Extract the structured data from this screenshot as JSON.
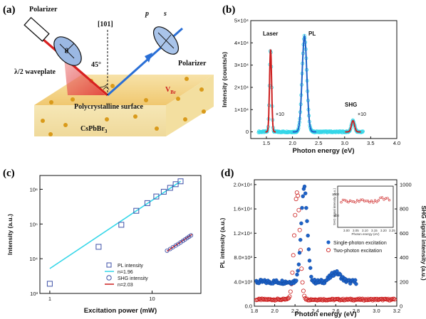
{
  "panels": {
    "a": {
      "label": "(a)"
    },
    "b": {
      "label": "(b)"
    },
    "c": {
      "label": "(c)"
    },
    "d": {
      "label": "(d)"
    }
  },
  "diagram_a": {
    "polarizer_in": "Polarizer",
    "waveplate": "λ/2 waveplate",
    "theta": "θ",
    "direction": "[101]",
    "angle": "45°",
    "p": "p",
    "s": "s",
    "polarizer_out": "Polarizer",
    "surface": "Polycrystalline surface",
    "vacancy_main": "V",
    "vacancy_sub": "Br",
    "crystal_main": "CsPbBr",
    "crystal_sub": "3"
  },
  "colors": {
    "red": "#cc1f1f",
    "cyan": "#33d6e8",
    "blue": "#1d62c8",
    "slab_top": "#f5d894",
    "slab_side": "#f2e0a6",
    "beam_blue": "#2a6fd6",
    "dot": "#d99a1a"
  },
  "chart_data": [
    {
      "panel": "b",
      "type": "line",
      "xlabel": "Photon energy (eV)",
      "ylabel": "Intensity (counts/s)",
      "xlim": [
        1.2,
        4.0
      ],
      "ylim": [
        -3000,
        50000
      ],
      "xticks": [
        "1.5",
        "2.0",
        "2.5",
        "3.0",
        "3.5",
        "4.0"
      ],
      "xtick_values": [
        1.5,
        2.0,
        2.5,
        3.0,
        3.5,
        4.0
      ],
      "yticks": [
        "0",
        "1×10⁴",
        "2×10⁴",
        "3×10⁴",
        "4×10⁴",
        "5×10⁴"
      ],
      "ytick_values": [
        0,
        10000,
        20000,
        30000,
        40000,
        50000
      ],
      "annotations": [
        "Laser",
        "PL",
        "SHG",
        "×10",
        "×10"
      ],
      "peaks": [
        {
          "name": "Laser",
          "center": 1.58,
          "height": 37000,
          "width": 0.02
        },
        {
          "name": "PL",
          "center": 2.23,
          "height": 43000,
          "width": 0.045
        },
        {
          "name": "SHG",
          "center": 3.16,
          "height": 5000,
          "width": 0.03
        }
      ],
      "fit_color": "red",
      "data_color": "cyan"
    },
    {
      "panel": "c",
      "type": "scatter",
      "xscale": "log",
      "yscale": "log",
      "xlabel": "Excitation power (mW)",
      "ylabel": "Intensity (a.u.)",
      "xlim": [
        0.8,
        30
      ],
      "ylim": [
        1000,
        2500000
      ],
      "xticks": [
        "1",
        "10"
      ],
      "xtick_values": [
        1,
        10
      ],
      "yticks": [
        "10³",
        "10⁴",
        "10⁵",
        "10⁶"
      ],
      "ytick_values": [
        1000,
        10000,
        100000,
        1000000
      ],
      "series": [
        {
          "name": "PL intensity",
          "marker": "square",
          "x": [
            1.0,
            3.0,
            5.0,
            7.0,
            9.0,
            11.0,
            13.0,
            15.0,
            17.0,
            19.0
          ],
          "y": [
            1900,
            22000,
            95000,
            240000,
            400000,
            620000,
            850000,
            1100000,
            1400000,
            1700000
          ]
        },
        {
          "name": "n=1.96",
          "type": "line",
          "x": [
            1.0,
            19.0
          ],
          "y": [
            5200,
            1700000
          ]
        },
        {
          "name": "SHG intensity",
          "marker": "circle",
          "x": [
            14.0,
            15.0,
            16.0,
            17.0,
            18.0,
            19.0,
            20.0,
            21.0,
            22.0,
            23.0,
            24.0
          ],
          "y": [
            17000,
            19000,
            21500,
            24000,
            26500,
            29500,
            32500,
            36000,
            39500,
            43000,
            47000
          ]
        },
        {
          "name": "n=2.03",
          "type": "line",
          "x": [
            14.0,
            24.5
          ],
          "y": [
            16500,
            50000
          ]
        }
      ],
      "legend": "bottom-right"
    },
    {
      "panel": "d",
      "type": "scatter",
      "xlabel": "Photon energy (eV)",
      "ylabel": "PL intensity (a.u.)",
      "ylabel_right": "SHG signal intensity (a.u.)",
      "xlim": [
        1.8,
        3.2
      ],
      "ylim": [
        0,
        20800
      ],
      "ylim_right": [
        0,
        1040
      ],
      "xticks": [
        "1.8",
        "2.0",
        "2.2",
        "2.4",
        "2.6",
        "2.8",
        "3.0",
        "3.2"
      ],
      "xtick_values": [
        1.8,
        2.0,
        2.2,
        2.4,
        2.6,
        2.8,
        3.0,
        3.2
      ],
      "yticks": [
        "0.0",
        "4.0×10³",
        "8.0×10³",
        "1.2×10⁴",
        "1.6×10⁴",
        "2.0×10⁴"
      ],
      "ytick_values": [
        0,
        4000,
        8000,
        12000,
        16000,
        20000
      ],
      "yticks_right": [
        "0",
        "200",
        "400",
        "600",
        "800",
        "1000"
      ],
      "ytick_values_right": [
        0,
        200,
        400,
        600,
        800,
        1000
      ],
      "series": [
        {
          "name": "Single-photon excitation",
          "marker": "filled-circle",
          "axis": "left",
          "baseline": 4000,
          "peak_center": 2.29,
          "peak_height": 19500,
          "peak_width": 0.03,
          "range": [
            1.82,
            2.8
          ]
        },
        {
          "name": "Two-photon excitation",
          "marker": "open-circle",
          "axis": "left",
          "baseline": 1100,
          "peak_center": 2.22,
          "peak_height": 18800,
          "peak_width": 0.028,
          "range": [
            1.82,
            3.18
          ]
        }
      ],
      "legend": "center-right",
      "inset": {
        "xlabel": "Photon energy (eV)",
        "ylabel": "SHG signal intensity (a.u.)",
        "xticks": [
          "3.00",
          "3.05",
          "3.10",
          "3.15",
          "3.20",
          "3.25"
        ],
        "yticks": [
          "800",
          "1000"
        ]
      }
    }
  ]
}
